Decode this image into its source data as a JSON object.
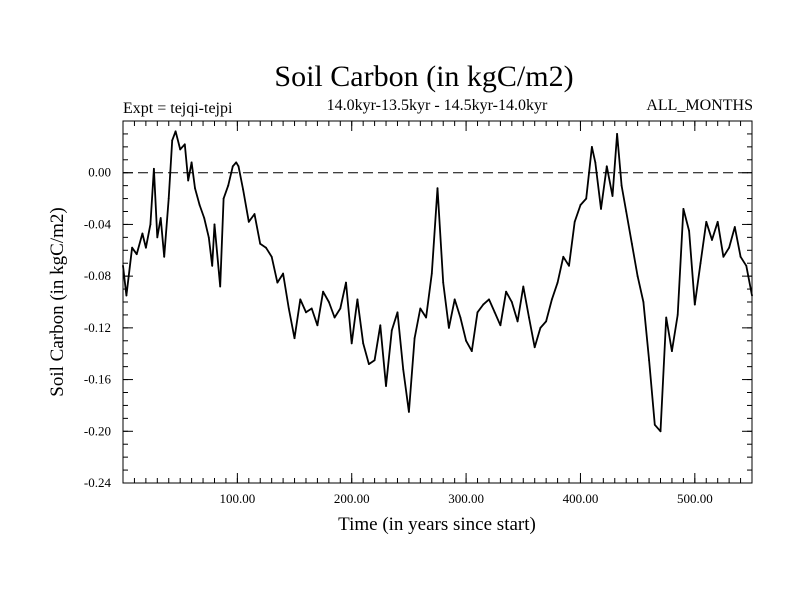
{
  "chart_data": {
    "type": "line",
    "title": "Soil Carbon (in kgC/m2)",
    "subtitle_left": "Expt = tejqi-tejpi",
    "subtitle_center": "14.0kyr-13.5kyr - 14.5kyr-14.0kyr",
    "subtitle_right": "ALL_MONTHS",
    "xlabel": "Time (in years since start)",
    "ylabel": "Soil Carbon (in kgC/m2)",
    "xlim": [
      0,
      550
    ],
    "ylim": [
      -0.24,
      0.04
    ],
    "x_ticks": [
      100,
      200,
      300,
      400,
      500
    ],
    "x_tick_labels": [
      "100.00",
      "200.00",
      "300.00",
      "400.00",
      "500.00"
    ],
    "y_ticks": [
      0.0,
      -0.04,
      -0.08,
      -0.12,
      -0.16,
      -0.2,
      -0.24
    ],
    "y_tick_labels": [
      "0.00",
      "-0.04",
      "-0.08",
      "-0.12",
      "-0.16",
      "-0.20",
      "-0.24"
    ],
    "reference_line": {
      "y": 0.0,
      "style": "dashed"
    },
    "series": [
      {
        "x": [
          0,
          3,
          8,
          12,
          17,
          20,
          24,
          27,
          30,
          33,
          36,
          40,
          43,
          46,
          50,
          54,
          57,
          60,
          63,
          67,
          71,
          75,
          78,
          80,
          85,
          88,
          92,
          96,
          99,
          101,
          105,
          110,
          115,
          120,
          125,
          130,
          135,
          140,
          145,
          150,
          155,
          160,
          165,
          170,
          175,
          180,
          185,
          190,
          195,
          200,
          205,
          210,
          215,
          220,
          225,
          230,
          235,
          240,
          245,
          250,
          255,
          260,
          265,
          270,
          275,
          280,
          285,
          290,
          295,
          300,
          305,
          310,
          315,
          320,
          325,
          330,
          335,
          340,
          345,
          350,
          355,
          360,
          365,
          370,
          375,
          380,
          385,
          390,
          395,
          400,
          405,
          410,
          413,
          418,
          423,
          428,
          432,
          436,
          440,
          445,
          450,
          455,
          460,
          465,
          470,
          475,
          480,
          485,
          490,
          495,
          500,
          505,
          510,
          515,
          520,
          525,
          530,
          535,
          540,
          545,
          550
        ],
        "values": [
          -0.072,
          -0.095,
          -0.058,
          -0.063,
          -0.047,
          -0.058,
          -0.04,
          0.003,
          -0.05,
          -0.035,
          -0.065,
          -0.02,
          0.025,
          0.032,
          0.018,
          0.022,
          -0.006,
          0.008,
          -0.012,
          -0.025,
          -0.035,
          -0.05,
          -0.072,
          -0.04,
          -0.088,
          -0.02,
          -0.01,
          0.005,
          0.008,
          0.005,
          -0.013,
          -0.038,
          -0.032,
          -0.055,
          -0.058,
          -0.065,
          -0.085,
          -0.078,
          -0.105,
          -0.128,
          -0.098,
          -0.108,
          -0.105,
          -0.118,
          -0.092,
          -0.1,
          -0.112,
          -0.105,
          -0.085,
          -0.132,
          -0.098,
          -0.132,
          -0.148,
          -0.145,
          -0.118,
          -0.165,
          -0.122,
          -0.108,
          -0.152,
          -0.185,
          -0.128,
          -0.105,
          -0.112,
          -0.078,
          -0.012,
          -0.085,
          -0.12,
          -0.098,
          -0.112,
          -0.13,
          -0.138,
          -0.108,
          -0.102,
          -0.098,
          -0.108,
          -0.118,
          -0.092,
          -0.1,
          -0.115,
          -0.088,
          -0.112,
          -0.135,
          -0.12,
          -0.115,
          -0.098,
          -0.085,
          -0.065,
          -0.072,
          -0.038,
          -0.025,
          -0.02,
          0.02,
          0.008,
          -0.028,
          0.005,
          -0.018,
          0.03,
          -0.01,
          -0.03,
          -0.055,
          -0.08,
          -0.1,
          -0.145,
          -0.195,
          -0.2,
          -0.112,
          -0.138,
          -0.11,
          -0.028,
          -0.045,
          -0.102,
          -0.07,
          -0.038,
          -0.052,
          -0.038,
          -0.065,
          -0.058,
          -0.042,
          -0.065,
          -0.072,
          -0.095
        ]
      }
    ]
  }
}
